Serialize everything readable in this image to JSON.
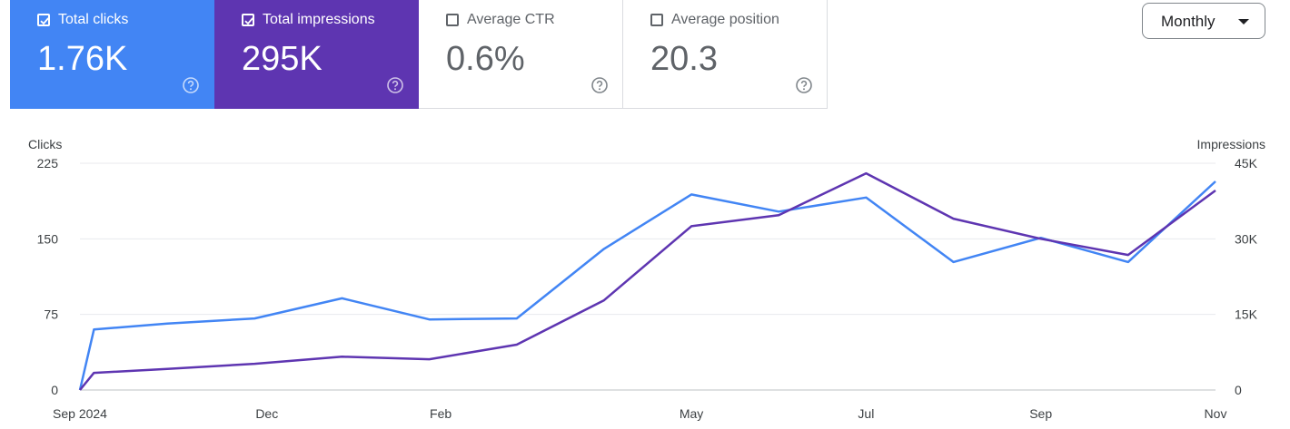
{
  "cards": [
    {
      "key": "clicks",
      "label": "Total clicks",
      "value": "1.76K",
      "checked": true,
      "color": "#4285f4"
    },
    {
      "key": "impressions",
      "label": "Total impressions",
      "value": "295K",
      "checked": true,
      "color": "#5e35b1"
    },
    {
      "key": "ctr",
      "label": "Average CTR",
      "value": "0.6%",
      "checked": false
    },
    {
      "key": "position",
      "label": "Average position",
      "value": "20.3",
      "checked": false
    }
  ],
  "period_select": {
    "value": "Monthly"
  },
  "chart_data": {
    "type": "line",
    "x_tick_labels": [
      "Sep 2024",
      "Dec",
      "Feb",
      "May",
      "Jul",
      "Sep",
      "Nov"
    ],
    "left_axis": {
      "title": "Clicks",
      "ticks": [
        "225",
        "150",
        "75",
        "0"
      ],
      "range": [
        0,
        225
      ]
    },
    "right_axis": {
      "title": "Impressions",
      "ticks": [
        "45K",
        "30K",
        "15K",
        "0"
      ],
      "range": [
        0,
        45000
      ]
    },
    "grid": true,
    "series": [
      {
        "axis": "left",
        "color": "#4285f4",
        "points": [
          [
            0,
            0
          ],
          [
            0.16,
            60
          ],
          [
            1,
            66
          ],
          [
            2,
            71
          ],
          [
            3,
            91
          ],
          [
            4,
            70
          ],
          [
            5,
            71
          ],
          [
            6,
            140
          ],
          [
            7,
            194
          ],
          [
            8,
            177
          ],
          [
            9,
            191
          ],
          [
            10,
            127
          ],
          [
            11,
            151
          ],
          [
            12,
            127
          ],
          [
            13,
            207
          ]
        ]
      },
      {
        "axis": "right",
        "color": "#5e35b1",
        "points": [
          [
            0,
            0
          ],
          [
            0.16,
            3400
          ],
          [
            1,
            4200
          ],
          [
            2,
            5200
          ],
          [
            3,
            6600
          ],
          [
            4,
            6100
          ],
          [
            5,
            9000
          ],
          [
            6,
            17800
          ],
          [
            7,
            32500
          ],
          [
            8,
            34700
          ],
          [
            9,
            43000
          ],
          [
            10,
            34000
          ],
          [
            11,
            30000
          ],
          [
            12,
            26800
          ],
          [
            13,
            39600
          ]
        ]
      }
    ]
  }
}
